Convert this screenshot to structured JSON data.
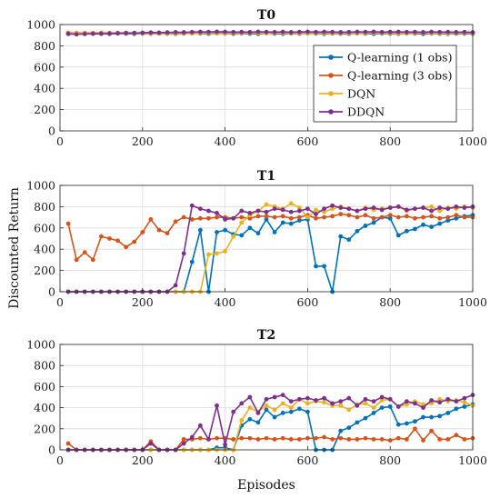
{
  "figure": {
    "ylabel": "Discounted Return",
    "xlabel": "Episodes"
  },
  "legend": {
    "placement": "top-right of T0 panel",
    "entries": [
      {
        "name": "Q-learning (1 obs)",
        "color": "#0072BD"
      },
      {
        "name": "Q-learning (3 obs)",
        "color": "#D95319"
      },
      {
        "name": "DQN",
        "color": "#EDB120"
      },
      {
        "name": "DDQN",
        "color": "#7E2F8E"
      }
    ]
  },
  "chart_data": [
    {
      "type": "line",
      "title": "T0",
      "xlim": [
        0,
        1000
      ],
      "ylim": [
        0,
        1000
      ],
      "xticks": [
        0,
        200,
        400,
        600,
        800,
        1000
      ],
      "yticks": [
        0,
        200,
        400,
        600,
        800,
        1000
      ],
      "grid": true,
      "x": [
        20,
        40,
        60,
        80,
        100,
        120,
        140,
        160,
        180,
        200,
        220,
        240,
        260,
        280,
        300,
        320,
        340,
        360,
        380,
        400,
        420,
        440,
        460,
        480,
        500,
        520,
        540,
        560,
        580,
        600,
        620,
        640,
        660,
        680,
        700,
        720,
        740,
        760,
        780,
        800,
        820,
        840,
        860,
        880,
        900,
        920,
        940,
        960,
        980,
        1000
      ],
      "series": [
        {
          "name": "Q-learning (1 obs)",
          "color": "#0072BD",
          "values": [
            915,
            912,
            914,
            913,
            915,
            912,
            916,
            914,
            912,
            915,
            913,
            916,
            914,
            912,
            915,
            918,
            916,
            914,
            917,
            915,
            913,
            916,
            914,
            912,
            918,
            915,
            913,
            916,
            914,
            917,
            915,
            912,
            916,
            914,
            913,
            917,
            915,
            912,
            916,
            914,
            913,
            917,
            915,
            912,
            916,
            914,
            913,
            915,
            914,
            913
          ]
        },
        {
          "name": "Q-learning (3 obs)",
          "color": "#D95319",
          "values": [
            922,
            920,
            921,
            919,
            922,
            920,
            921,
            922,
            920,
            921,
            923,
            921,
            922,
            920,
            921,
            923,
            924,
            925,
            923,
            922,
            924,
            923,
            925,
            924,
            923,
            925,
            924,
            923,
            922,
            924,
            923,
            922,
            924,
            923,
            922,
            924,
            923,
            925,
            924,
            923,
            922,
            924,
            923,
            925,
            924,
            923,
            922,
            924,
            923,
            922
          ]
        },
        {
          "name": "DQN",
          "color": "#EDB120",
          "values": [
            918,
            916,
            917,
            915,
            918,
            916,
            917,
            916,
            918,
            917,
            915,
            918,
            917,
            916,
            918,
            919,
            920,
            921,
            919,
            918,
            920,
            919,
            921,
            920,
            919,
            921,
            920,
            919,
            918,
            920,
            919,
            918,
            920,
            919,
            918,
            920,
            919,
            921,
            920,
            919,
            918,
            920,
            919,
            921,
            920,
            919,
            918,
            920,
            919,
            918
          ]
        },
        {
          "name": "DDQN",
          "color": "#7E2F8E",
          "values": [
            912,
            908,
            911,
            914,
            913,
            915,
            917,
            919,
            921,
            923,
            925,
            924,
            926,
            928,
            927,
            929,
            931,
            930,
            932,
            931,
            929,
            930,
            928,
            932,
            930,
            929,
            931,
            928,
            930,
            932,
            929,
            931,
            930,
            928,
            929,
            931,
            930,
            932,
            929,
            930,
            931,
            929,
            930,
            928,
            931,
            929,
            930,
            928,
            929,
            927
          ]
        }
      ]
    },
    {
      "type": "line",
      "title": "T1",
      "xlim": [
        0,
        1000
      ],
      "ylim": [
        0,
        1000
      ],
      "xticks": [
        0,
        200,
        400,
        600,
        800,
        1000
      ],
      "yticks": [
        0,
        200,
        400,
        600,
        800,
        1000
      ],
      "grid": true,
      "x": [
        20,
        40,
        60,
        80,
        100,
        120,
        140,
        160,
        180,
        200,
        220,
        240,
        260,
        280,
        300,
        320,
        340,
        360,
        380,
        400,
        420,
        440,
        460,
        480,
        500,
        520,
        540,
        560,
        580,
        600,
        620,
        640,
        660,
        680,
        700,
        720,
        740,
        760,
        780,
        800,
        820,
        840,
        860,
        880,
        900,
        920,
        940,
        960,
        980,
        1000
      ],
      "series": [
        {
          "name": "Q-learning (1 obs)",
          "color": "#0072BD",
          "values": [
            0,
            0,
            0,
            0,
            0,
            0,
            0,
            0,
            0,
            0,
            0,
            0,
            0,
            0,
            0,
            280,
            580,
            0,
            560,
            580,
            540,
            530,
            600,
            550,
            680,
            560,
            650,
            640,
            670,
            680,
            240,
            240,
            0,
            520,
            490,
            570,
            620,
            650,
            700,
            690,
            530,
            570,
            590,
            630,
            610,
            640,
            670,
            690,
            710,
            720
          ]
        },
        {
          "name": "Q-learning (3 obs)",
          "color": "#D95319",
          "values": [
            640,
            300,
            370,
            300,
            520,
            500,
            480,
            420,
            470,
            560,
            680,
            580,
            550,
            660,
            700,
            680,
            690,
            690,
            700,
            700,
            690,
            700,
            690,
            710,
            710,
            700,
            710,
            690,
            700,
            720,
            690,
            700,
            710,
            730,
            720,
            700,
            720,
            690,
            700,
            720,
            700,
            710,
            690,
            700,
            710,
            690,
            700,
            720,
            700,
            700
          ]
        },
        {
          "name": "DQN",
          "color": "#EDB120",
          "values": [
            0,
            0,
            0,
            0,
            0,
            0,
            0,
            0,
            0,
            0,
            0,
            0,
            0,
            0,
            0,
            0,
            0,
            350,
            360,
            380,
            520,
            650,
            720,
            760,
            820,
            800,
            780,
            830,
            790,
            700,
            770,
            750,
            780,
            800,
            780,
            760,
            790,
            770,
            780,
            790,
            800,
            760,
            780,
            790,
            800,
            760,
            790,
            780,
            800,
            790
          ]
        },
        {
          "name": "DDQN",
          "color": "#7E2F8E",
          "values": [
            0,
            0,
            0,
            0,
            0,
            0,
            0,
            0,
            0,
            0,
            0,
            0,
            0,
            60,
            360,
            810,
            780,
            760,
            740,
            680,
            690,
            760,
            740,
            760,
            750,
            780,
            770,
            750,
            760,
            780,
            730,
            780,
            810,
            790,
            780,
            760,
            780,
            790,
            770,
            790,
            800,
            770,
            780,
            790,
            760,
            790,
            780,
            800,
            790,
            800
          ]
        }
      ]
    },
    {
      "type": "line",
      "title": "T2",
      "xlim": [
        0,
        1000
      ],
      "ylim": [
        0,
        1000
      ],
      "xticks": [
        0,
        200,
        400,
        600,
        800,
        1000
      ],
      "yticks": [
        0,
        200,
        400,
        600,
        800,
        1000
      ],
      "grid": true,
      "x": [
        20,
        40,
        60,
        80,
        100,
        120,
        140,
        160,
        180,
        200,
        220,
        240,
        260,
        280,
        300,
        320,
        340,
        360,
        380,
        400,
        420,
        440,
        460,
        480,
        500,
        520,
        540,
        560,
        580,
        600,
        620,
        640,
        660,
        680,
        700,
        720,
        740,
        760,
        780,
        800,
        820,
        840,
        860,
        880,
        900,
        920,
        940,
        960,
        980,
        1000
      ],
      "series": [
        {
          "name": "Q-learning (1 obs)",
          "color": "#0072BD",
          "values": [
            0,
            0,
            0,
            0,
            0,
            0,
            0,
            0,
            0,
            0,
            0,
            0,
            0,
            0,
            0,
            0,
            0,
            0,
            20,
            20,
            0,
            230,
            290,
            260,
            380,
            310,
            350,
            360,
            390,
            360,
            0,
            0,
            0,
            180,
            210,
            260,
            300,
            350,
            400,
            410,
            240,
            250,
            270,
            310,
            310,
            320,
            350,
            390,
            410,
            430
          ]
        },
        {
          "name": "Q-learning (3 obs)",
          "color": "#D95319",
          "values": [
            60,
            0,
            0,
            0,
            0,
            0,
            0,
            0,
            0,
            0,
            80,
            0,
            0,
            0,
            100,
            100,
            110,
            100,
            110,
            110,
            100,
            110,
            110,
            100,
            110,
            100,
            110,
            100,
            100,
            110,
            110,
            120,
            100,
            110,
            100,
            100,
            110,
            100,
            100,
            90,
            110,
            100,
            200,
            90,
            180,
            100,
            100,
            140,
            100,
            110
          ]
        },
        {
          "name": "DQN",
          "color": "#EDB120",
          "values": [
            0,
            0,
            0,
            0,
            0,
            0,
            0,
            0,
            0,
            0,
            0,
            0,
            0,
            0,
            0,
            0,
            0,
            0,
            0,
            0,
            0,
            280,
            400,
            360,
            420,
            380,
            440,
            400,
            480,
            440,
            460,
            450,
            420,
            420,
            380,
            430,
            440,
            400,
            470,
            480,
            410,
            430,
            460,
            430,
            440,
            480,
            460,
            470,
            450,
            420
          ]
        },
        {
          "name": "DDQN",
          "color": "#7E2F8E",
          "values": [
            0,
            0,
            0,
            0,
            0,
            0,
            0,
            0,
            0,
            0,
            60,
            0,
            0,
            0,
            60,
            120,
            230,
            100,
            420,
            50,
            360,
            440,
            500,
            350,
            480,
            500,
            520,
            460,
            480,
            490,
            470,
            490,
            440,
            460,
            490,
            420,
            480,
            460,
            500,
            480,
            410,
            460,
            440,
            400,
            470,
            450,
            480,
            460,
            490,
            520
          ]
        }
      ]
    }
  ]
}
